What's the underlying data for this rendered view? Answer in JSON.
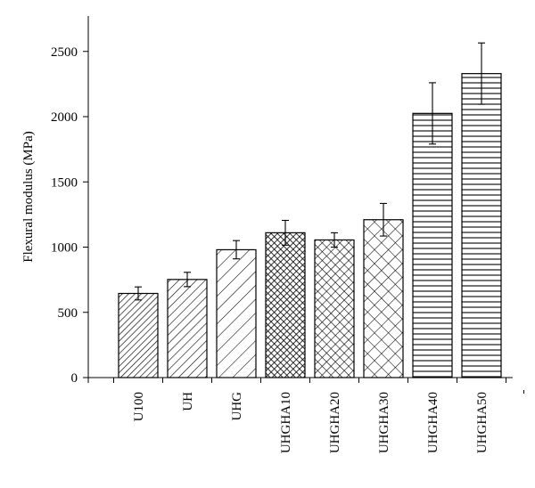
{
  "chart_data": {
    "type": "bar",
    "title": "",
    "xlabel": "",
    "ylabel": "Flexural modulus (MPa)",
    "ylim": [
      0,
      2700
    ],
    "yticks": [
      0,
      500,
      1000,
      1500,
      2000,
      2500
    ],
    "categories": [
      "U100",
      "UH",
      "UHG",
      "UHGHA10",
      "UHGHA20",
      "UHGHA30",
      "UHGHA40",
      "UHGHA50"
    ],
    "values": [
      645,
      752,
      980,
      1110,
      1055,
      1210,
      2025,
      2330
    ],
    "errors": [
      50,
      55,
      70,
      95,
      55,
      125,
      235,
      235
    ],
    "patterns": [
      "diag-dense",
      "diag-medium",
      "diag-sparse",
      "crosshatch-dense",
      "crosshatch-medium",
      "crosshatch-sparse",
      "horizontal",
      "horizontal"
    ],
    "grid": false,
    "legend": "none"
  }
}
